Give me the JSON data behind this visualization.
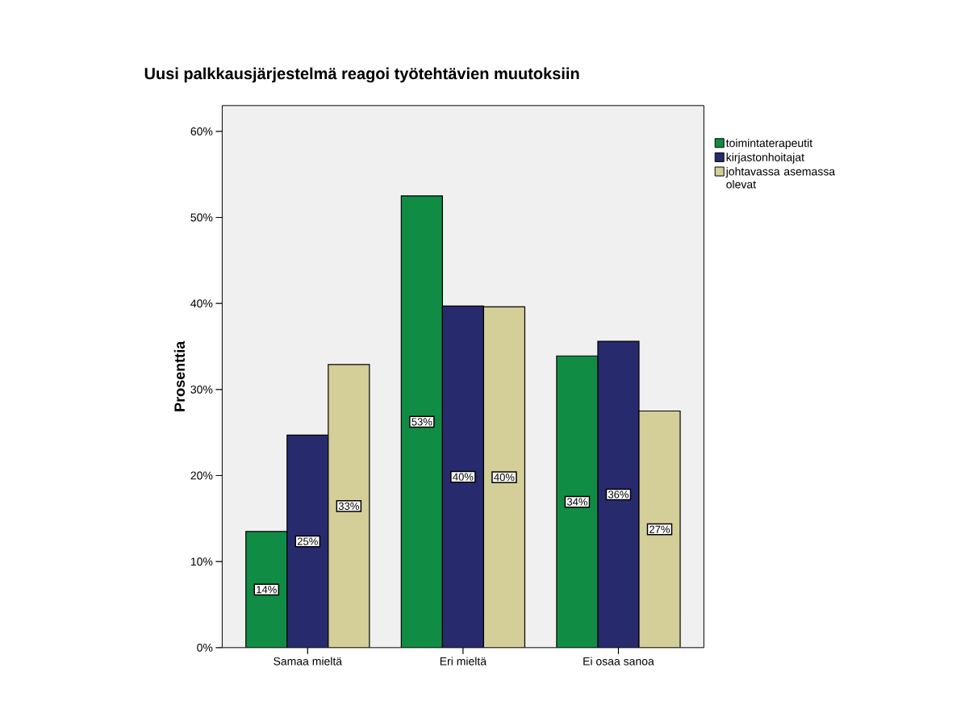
{
  "chart_data": {
    "type": "bar",
    "title": "Uusi palkkausjärjestelmä reagoi työtehtävien muutoksiin",
    "ylabel": "Prosenttia",
    "categories": [
      "Samaa mieltä",
      "Eri mieltä",
      "Ei osaa sanoa"
    ],
    "series": [
      {
        "name": "toimintaterapeutit",
        "color": "#118c45",
        "values": [
          13.5,
          52.5,
          33.9
        ],
        "value_labels": [
          "14%",
          "53%",
          "34%"
        ]
      },
      {
        "name": "kirjastonhoitajat",
        "color": "#282a6e",
        "values": [
          24.7,
          39.7,
          35.6
        ],
        "value_labels": [
          "25%",
          "40%",
          "36%"
        ]
      },
      {
        "name": "johtavassa asemassa olevat",
        "color": "#d4cf98",
        "values": [
          32.9,
          39.6,
          27.5
        ],
        "value_labels": [
          "33%",
          "40%",
          "27%"
        ]
      }
    ],
    "ylim": [
      0,
      63
    ],
    "yticks": [
      {
        "value": 0,
        "label": "0%"
      },
      {
        "value": 10,
        "label": "10%"
      },
      {
        "value": 20,
        "label": "20%"
      },
      {
        "value": 30,
        "label": "30%"
      },
      {
        "value": 40,
        "label": "40%"
      },
      {
        "value": 50,
        "label": "50%"
      },
      {
        "value": 60,
        "label": "60%"
      }
    ],
    "legend": "top right"
  }
}
